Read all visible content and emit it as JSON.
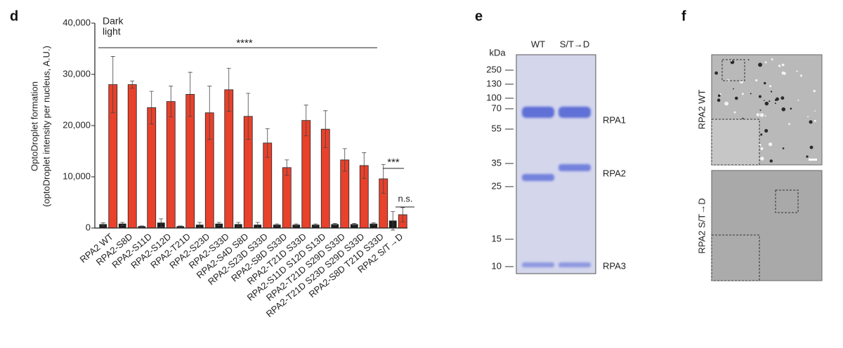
{
  "chart_data": {
    "type": "bar",
    "panel": "d",
    "y_label": [
      "OptoDroplet formation",
      "(optoDroplet intensity per nucleus, A.U.)"
    ],
    "categories": [
      "RPA2 WT",
      "RPA2-S8D",
      "RPA2-S11D",
      "RPA2-S12D",
      "RPA2-T21D",
      "RPA2-S23D",
      "RPA2-S33D",
      "RPA2-S4D S8D",
      "RPA2-S23D S33D",
      "RPA2-S8D S33D",
      "RPA2-T21D S33D",
      "RPA2-S11D S12D S13D",
      "RPA2-T21D S29D S33D",
      "RPA2-T21D S23D S29D S33D",
      "RPA2-S8D T21D S33D",
      "RPA2 S/T→D"
    ],
    "series": [
      {
        "name": "Dark",
        "color": "#1a1a1a",
        "values": [
          700,
          800,
          300,
          1000,
          300,
          600,
          800,
          700,
          600,
          600,
          600,
          600,
          700,
          700,
          800,
          1400
        ],
        "errors": [
          300,
          300,
          100,
          800,
          100,
          500,
          300,
          400,
          500,
          200,
          200,
          200,
          200,
          200,
          200,
          1800
        ]
      },
      {
        "name": "light",
        "color": "#e8412c",
        "values": [
          28000,
          28000,
          23500,
          24700,
          26100,
          22500,
          27000,
          21800,
          16600,
          11800,
          21000,
          19300,
          13300,
          12200,
          9600,
          2600
        ],
        "errors": [
          5500,
          700,
          3200,
          3000,
          4300,
          5200,
          4200,
          4500,
          2800,
          1500,
          3000,
          3600,
          2200,
          2500,
          2800,
          1400
        ]
      }
    ],
    "annotations": [
      "****",
      "***",
      "n.s."
    ],
    "ylim": [
      0,
      40000
    ],
    "yticks": [
      0,
      {
        "value": 10000,
        "label": "10,000"
      },
      {
        "value": 20000,
        "label": "20,000"
      },
      {
        "value": 30000,
        "label": "30,000"
      },
      {
        "value": 40000,
        "label": "40,000"
      }
    ]
  },
  "gel": {
    "panel": "e",
    "unit": "kDa",
    "lanes": [
      "WT",
      "S/T→D"
    ],
    "markers": [
      "250",
      "130",
      "100",
      "70",
      "55",
      "35",
      "25",
      "15",
      "10"
    ],
    "bands": [
      "RPA1",
      "RPA2",
      "RPA3"
    ]
  },
  "micrographs": {
    "panel": "f",
    "labels": [
      "RPA2 WT",
      "RPA2 S/T→D"
    ]
  }
}
